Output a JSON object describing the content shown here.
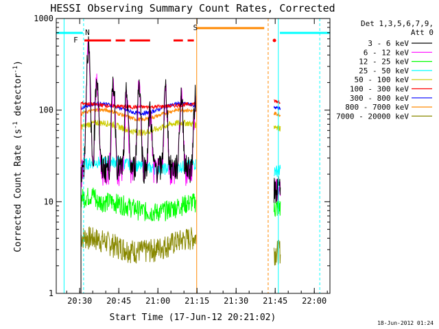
{
  "chart_data": {
    "type": "line",
    "title": "HESSI Observing Summary Count Rates, Corrected",
    "xlabel": "Start Time (17-Jun-12 20:21:02)",
    "ylabel_main": "Corrected Count Rate (s",
    "ylabel_sup1": "-1",
    "ylabel_mid": " detector",
    "ylabel_sup2": "-1",
    "ylabel_end": ")",
    "y_scale": "log",
    "ylim": [
      1,
      1000
    ],
    "xlim_minutes": [
      20.35,
      22.1
    ],
    "x_ticks": [
      {
        "label": "20:30",
        "h": 20.5
      },
      {
        "label": "20:45",
        "h": 20.75
      },
      {
        "label": "21:00",
        "h": 21.0
      },
      {
        "label": "21:15",
        "h": 21.25
      },
      {
        "label": "21:30",
        "h": 21.5
      },
      {
        "label": "21:45",
        "h": 21.75
      },
      {
        "label": "22:00",
        "h": 22.0
      }
    ],
    "y_ticks": [
      {
        "label": "1",
        "v": 1
      },
      {
        "label": "10",
        "v": 10
      },
      {
        "label": "100",
        "v": 100
      },
      {
        "label": "1000",
        "v": 1000
      }
    ],
    "legend": {
      "header1": "Det 1,3,5,6,7,9,",
      "header2": "Att 0",
      "placement": "right"
    },
    "series": [
      {
        "name": "3 - 6 keV",
        "color": "#000000",
        "level": 40
      },
      {
        "name": "6 - 12 keV",
        "color": "#ff00ff",
        "level": 40
      },
      {
        "name": "12 - 25 keV",
        "color": "#00ff00",
        "level": 12
      },
      {
        "name": "25 - 50 keV",
        "color": "#00ffff",
        "level": 28
      },
      {
        "name": "50 - 100 keV",
        "color": "#cccc00",
        "level": 70
      },
      {
        "name": "100 - 300 keV",
        "color": "#ff0000",
        "level": 120
      },
      {
        "name": "300 - 800 keV",
        "color": "#0000ff",
        "level": 110
      },
      {
        "name": "800 - 7000 keV",
        "color": "#ff8800",
        "level": 95
      },
      {
        "name": "7000 - 20000 keV",
        "color": "#888800",
        "level": 4.5
      }
    ],
    "flags": {
      "N_label": "N",
      "F_label": "F",
      "S_label": "S"
    },
    "timestamp": "18-Jun-2012 01:24"
  }
}
